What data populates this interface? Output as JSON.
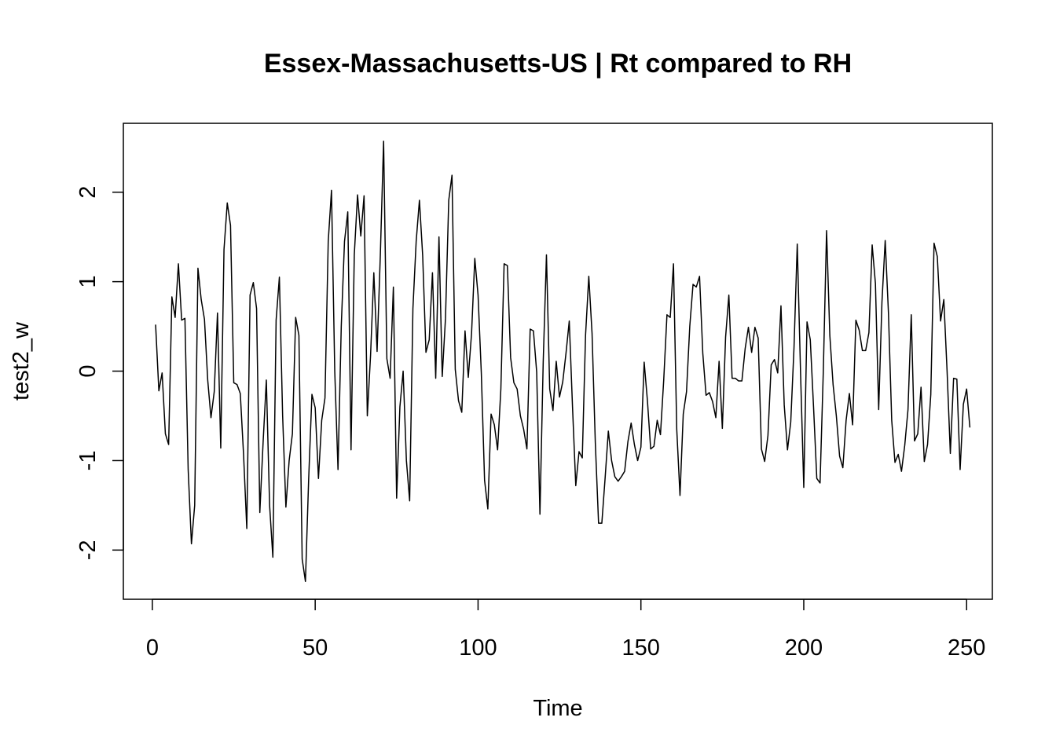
{
  "chart_data": {
    "type": "line",
    "title": "Essex-Massachusetts-US | Rt compared to RH",
    "xlabel": "Time",
    "ylabel": "test2_w",
    "xlim": [
      -8.9,
      257.9
    ],
    "ylim": [
      -2.55,
      2.77
    ],
    "x_ticks": [
      0,
      50,
      100,
      150,
      200,
      250
    ],
    "y_ticks": [
      -2,
      -1,
      0,
      1,
      2
    ],
    "x_tick_labels": [
      "0",
      "50",
      "100",
      "150",
      "200",
      "250"
    ],
    "y_tick_labels": [
      "-2",
      "-1",
      "0",
      "1",
      "2"
    ],
    "grid": false,
    "legend": "none",
    "line_color": "#000000",
    "series": [
      {
        "x_start": 1,
        "x_step": 1,
        "values": [
          0.52,
          -0.22,
          -0.02,
          -0.7,
          -0.82,
          0.83,
          0.6,
          1.2,
          0.57,
          0.59,
          -1.1,
          -1.93,
          -1.5,
          1.15,
          0.8,
          0.58,
          -0.1,
          -0.52,
          -0.23,
          0.65,
          -0.86,
          1.36,
          1.88,
          1.63,
          -0.13,
          -0.15,
          -0.25,
          -0.93,
          -1.76,
          0.85,
          0.99,
          0.7,
          -1.58,
          -0.8,
          -0.1,
          -1.5,
          -2.08,
          0.57,
          1.05,
          -0.5,
          -1.52,
          -1.0,
          -0.7,
          0.6,
          0.4,
          -2.1,
          -2.35,
          -1.2,
          -0.26,
          -0.41,
          -1.2,
          -0.55,
          -0.3,
          1.45,
          2.02,
          0.0,
          -1.1,
          0.5,
          1.45,
          1.78,
          -0.88,
          1.3,
          1.97,
          1.51,
          1.96,
          -0.5,
          0.18,
          1.1,
          0.22,
          1.3,
          2.57,
          0.14,
          -0.08,
          0.94,
          -1.42,
          -0.4,
          0.0,
          -1.0,
          -1.45,
          0.7,
          1.45,
          1.91,
          1.29,
          0.21,
          0.35,
          1.1,
          -0.08,
          1.5,
          -0.06,
          0.59,
          1.91,
          2.19,
          0.02,
          -0.33,
          -0.46,
          0.45,
          -0.07,
          0.42,
          1.26,
          0.85,
          -0.02,
          -1.22,
          -1.54,
          -0.48,
          -0.6,
          -0.88,
          -0.2,
          1.2,
          1.18,
          0.15,
          -0.13,
          -0.2,
          -0.5,
          -0.65,
          -0.87,
          0.47,
          0.45,
          -0.01,
          -1.6,
          0.1,
          1.3,
          -0.2,
          -0.44,
          0.11,
          -0.29,
          -0.12,
          0.2,
          0.56,
          -0.4,
          -1.28,
          -0.9,
          -0.97,
          0.4,
          1.06,
          0.42,
          -0.8,
          -1.7,
          -1.7,
          -1.2,
          -0.67,
          -1.0,
          -1.18,
          -1.23,
          -1.18,
          -1.12,
          -0.79,
          -0.58,
          -0.82,
          -1.0,
          -0.85,
          0.1,
          -0.33,
          -0.87,
          -0.84,
          -0.55,
          -0.71,
          -0.1,
          0.63,
          0.6,
          1.2,
          -0.65,
          -1.39,
          -0.48,
          -0.23,
          0.5,
          0.97,
          0.94,
          1.06,
          0.2,
          -0.27,
          -0.24,
          -0.34,
          -0.52,
          0.11,
          -0.64,
          0.38,
          0.85,
          -0.08,
          -0.08,
          -0.11,
          -0.11,
          0.25,
          0.49,
          0.21,
          0.49,
          0.37,
          -0.87,
          -1.01,
          -0.72,
          0.07,
          0.13,
          -0.02,
          0.73,
          -0.38,
          -0.88,
          -0.57,
          0.26,
          1.42,
          0.0,
          -1.3,
          0.55,
          0.35,
          -0.4,
          -1.2,
          -1.25,
          0.0,
          1.57,
          0.4,
          -0.15,
          -0.5,
          -0.95,
          -1.08,
          -0.55,
          -0.25,
          -0.6,
          0.57,
          0.46,
          0.23,
          0.23,
          0.43,
          1.41,
          0.98,
          -0.43,
          0.77,
          1.46,
          0.65,
          -0.55,
          -1.02,
          -0.93,
          -1.12,
          -0.83,
          -0.43,
          0.63,
          -0.78,
          -0.7,
          -0.18,
          -1.01,
          -0.82,
          -0.26,
          1.43,
          1.28,
          0.56,
          0.8,
          0.0,
          -0.92,
          -0.08,
          -0.09,
          -1.1,
          -0.37,
          -0.2,
          -0.63
        ]
      }
    ]
  }
}
